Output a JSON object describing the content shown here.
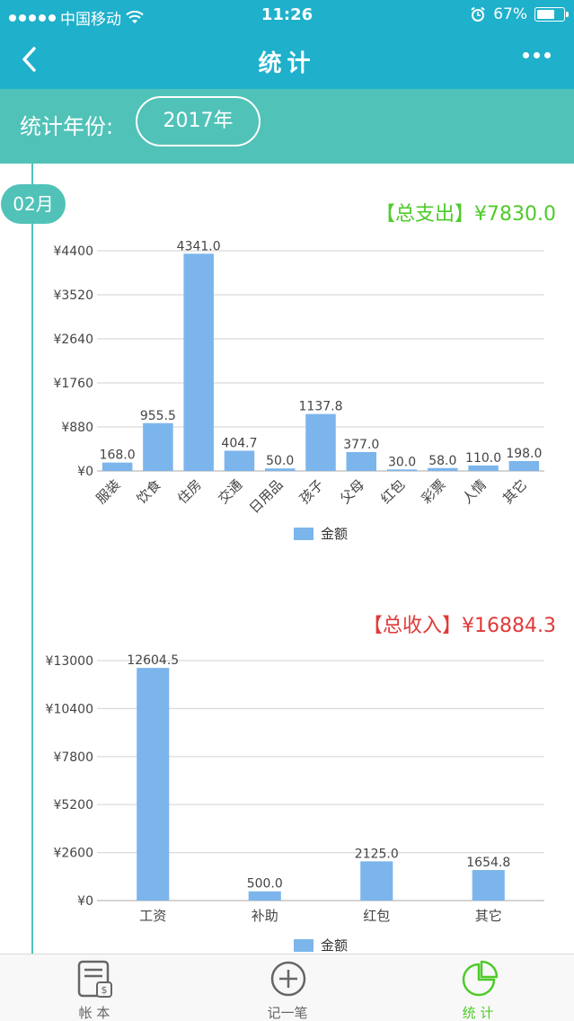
{
  "status_bar": {
    "carrier": "中国移动",
    "time": "11:26",
    "battery": "67%",
    "battery_level": 0.67
  },
  "nav": {
    "title": "统计",
    "back_icon": "chevron-left-icon",
    "more_icon": "more-dots-icon"
  },
  "year_bar": {
    "label": "统计年份:",
    "year": "2017年"
  },
  "timeline": {
    "month": "02月"
  },
  "expense": {
    "total_label": "【总支出】¥7830.0"
  },
  "income": {
    "total_label": "【总收入】¥16884.3"
  },
  "tabbar": {
    "items": [
      {
        "label": "帐 本",
        "icon": "account-book-icon",
        "active": false
      },
      {
        "label": "记一笔",
        "icon": "add-circle-icon",
        "active": false
      },
      {
        "label": "统 计",
        "icon": "pie-chart-icon",
        "active": true
      }
    ]
  },
  "colors": {
    "header": "#1fb0cb",
    "year_bar": "#51c2b8",
    "bar": "#7cb5ec",
    "expense_total": "#4ecb2a",
    "income_total": "#e03a3a",
    "active_tab": "#4ecb2a"
  },
  "chart_data": [
    {
      "type": "bar",
      "categories": [
        "服装",
        "饮食",
        "住房",
        "交通",
        "日用品",
        "孩子",
        "父母",
        "红包",
        "彩票",
        "人情",
        "其它"
      ],
      "series": [
        {
          "name": "金额",
          "values": [
            168.0,
            955.5,
            4341.0,
            404.7,
            50.0,
            1137.8,
            377.0,
            30.0,
            58.0,
            110.0,
            198.0
          ]
        }
      ],
      "value_labels": [
        "168.0",
        "955.5",
        "4341.0",
        "404.7",
        "50.0",
        "1137.8",
        "377.0",
        "30.0",
        "58.0",
        "110.0",
        "198.0"
      ],
      "ylim": [
        0,
        4400
      ],
      "yticks": [
        "¥0",
        "¥880",
        "¥1760",
        "¥2640",
        "¥3520",
        "¥4400"
      ],
      "grid": true,
      "legend": "bottom-center"
    },
    {
      "type": "bar",
      "categories": [
        "工资",
        "补助",
        "红包",
        "其它"
      ],
      "series": [
        {
          "name": "金额",
          "values": [
            12604.5,
            500.0,
            2125.0,
            1654.8
          ]
        }
      ],
      "value_labels": [
        "12604.5",
        "500.0",
        "2125.0",
        "1654.8"
      ],
      "ylim": [
        0,
        13000
      ],
      "yticks": [
        "¥0",
        "¥2600",
        "¥5200",
        "¥7800",
        "¥10400",
        "¥13000"
      ],
      "grid": true,
      "legend": "bottom-center"
    }
  ]
}
